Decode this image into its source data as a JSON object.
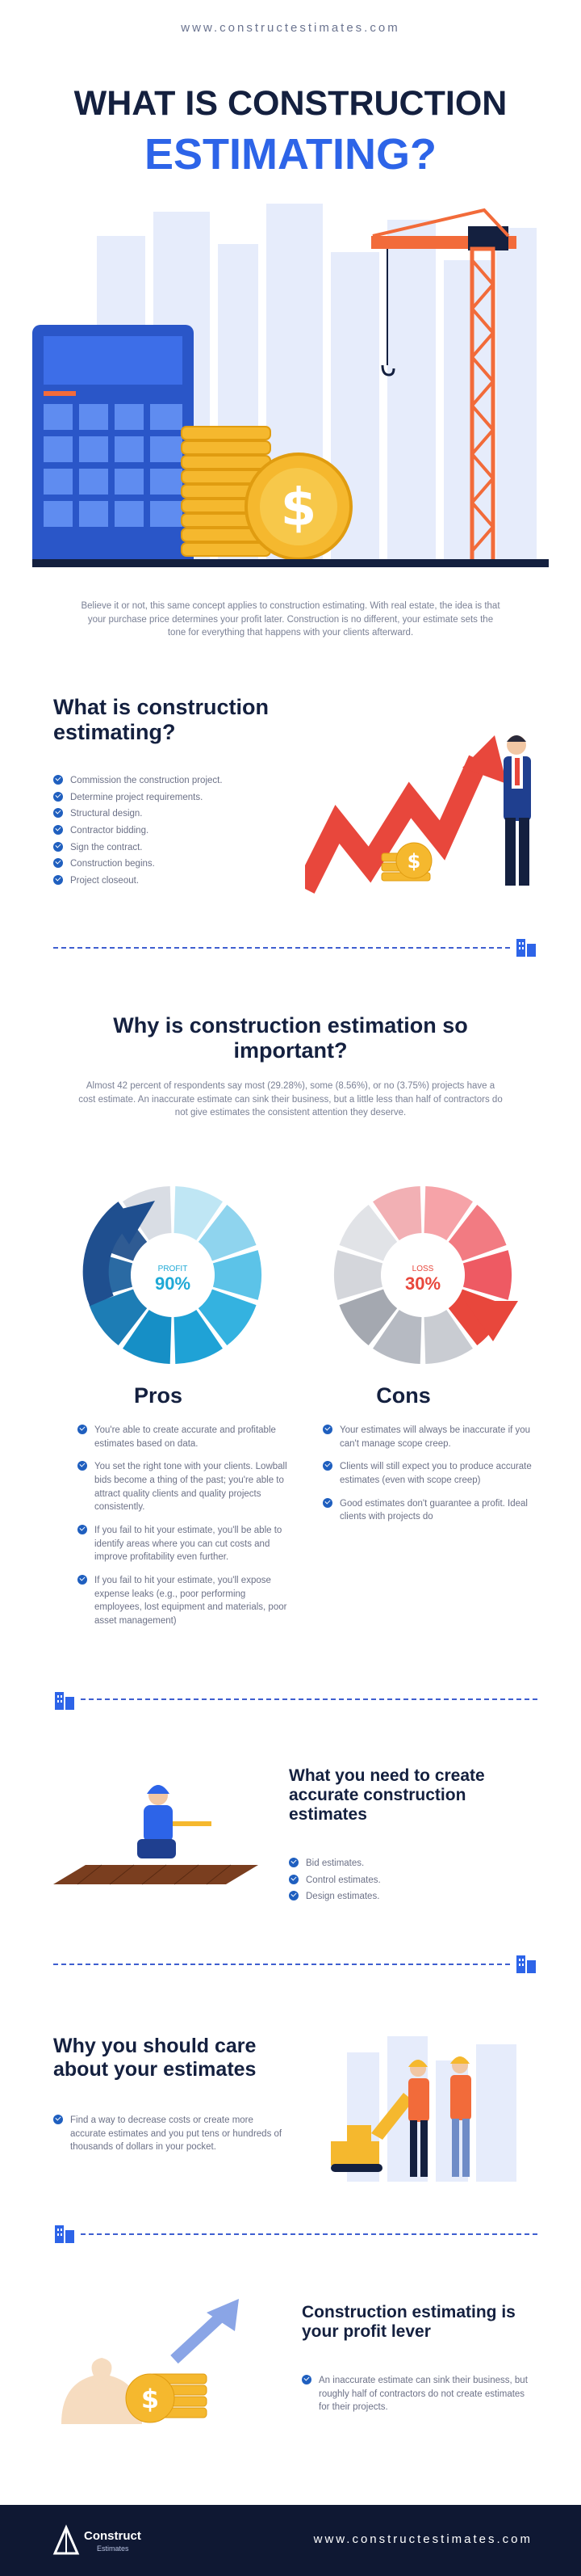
{
  "header": {
    "url": "www.constructestimates.com",
    "title_line1": "WHAT IS CONSTRUCTION",
    "title_line2": "ESTIMATING?"
  },
  "intro": {
    "text": "Believe it or not, this same concept applies to construction estimating. With real estate, the idea is that your purchase price determines your profit later. Construction is no different, your estimate sets the tone for everything that happens with your clients afterward."
  },
  "what_is": {
    "title": "What is construction estimating?",
    "items": [
      "Commission the construction project.",
      "Determine project requirements.",
      "Structural design.",
      "Contractor bidding.",
      "Sign the contract.",
      "Construction begins.",
      "Project closeout."
    ]
  },
  "why": {
    "title": "Why is construction estimation so important?",
    "text": "Almost 42 percent of respondents say most (29.28%), some (8.56%), or no (3.75%) projects have a cost estimate. An inaccurate estimate can sink their business, but a little less than half of contractors do not give estimates the consistent attention they deserve."
  },
  "profit_chart": {
    "label": "PROFIT",
    "value_text": "90%",
    "value": 90
  },
  "loss_chart": {
    "label": "LOSS",
    "value_text": "30%",
    "value": 30
  },
  "pros": {
    "title": "Pros",
    "items": [
      "You're able to create accurate and profitable estimates based on data.",
      "You set the right tone with your clients. Lowball bids become a thing of the past; you're able to attract quality clients and quality projects consistently.",
      "If you fail to hit your estimate, you'll be able to identify areas where you can cut costs and improve profitability even further.",
      "If you fail to hit your estimate, you'll expose expense leaks (e.g., poor performing employees, lost equipment and materials, poor asset management)"
    ]
  },
  "cons": {
    "title": "Cons",
    "items": [
      "Your estimates will always be inaccurate if you can't manage scope creep.",
      "Clients will still expect you to produce accurate estimates (even with scope creep)",
      "Good estimates don't guarantee a profit. Ideal clients with projects do"
    ]
  },
  "need": {
    "title": "What you need to create accurate construction estimates",
    "items": [
      "Bid estimates.",
      "Control estimates.",
      "Design estimates."
    ]
  },
  "care": {
    "title": "Why you should care about your estimates",
    "items": [
      "Find a way to decrease costs or create more accurate estimates and you put tens or hundreds of thousands of dollars in your pocket."
    ]
  },
  "lever": {
    "title": "Construction estimating is your profit lever",
    "items": [
      "An inaccurate estimate can sink their business, but roughly half of contractors do not create estimates for their projects."
    ]
  },
  "footer": {
    "logo_name": "Construct",
    "logo_sub": "Estimates",
    "url": "www.constructestimates.com"
  },
  "colors": {
    "navy": "#14203f",
    "blue": "#1f5fbf",
    "accent_blue": "#2d64e8",
    "orange": "#f26b3a",
    "red": "#e8473c",
    "gold": "#f5b82e",
    "footer_bg": "#0f1833"
  }
}
